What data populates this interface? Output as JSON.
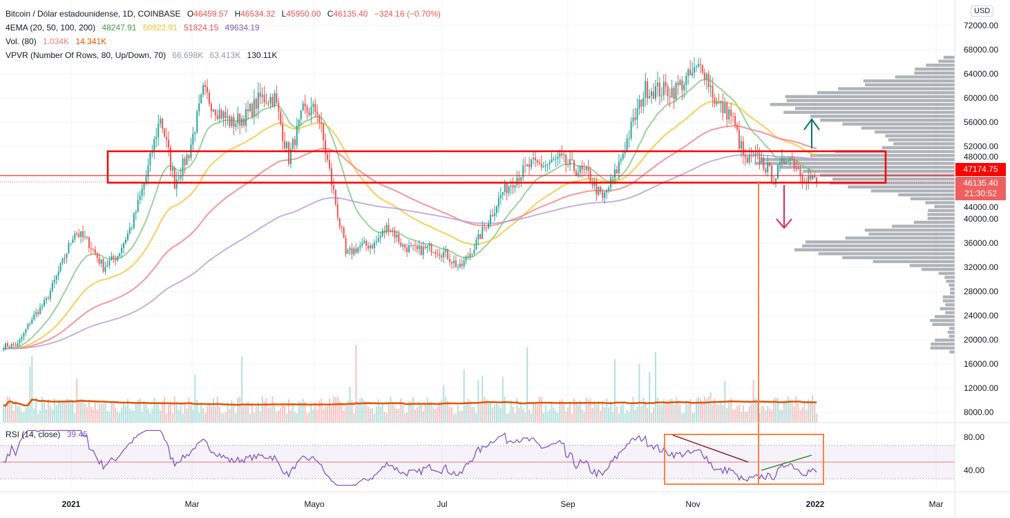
{
  "header": {
    "symbol": "Bitcoin / Dólar estadounidense, 1D, COINBASE",
    "open_label": "O",
    "open": "46459.57",
    "high_label": "H",
    "high": "46534.32",
    "low_label": "L",
    "low": "45950.00",
    "close_label": "C",
    "close": "46135.40",
    "change": "−324.16 (−0.70%)"
  },
  "ema": {
    "label": "4EMA (20, 50, 100, 200)",
    "v20": "48247.91",
    "v50": "50922.91",
    "v100": "51824.15",
    "v200": "49634.19"
  },
  "volume": {
    "label": "Vol. (80)",
    "v": "1.034K",
    "ma": "14.341K"
  },
  "vpvr": {
    "label": "VPVR (Number Of Rows, 80, Up/Down, 70)",
    "up": "66.698K",
    "down": "63.413K",
    "total": "130.11K"
  },
  "rsi": {
    "label": "RSI (14, close)",
    "value": "39.45"
  },
  "price_axis": {
    "currency": "USD",
    "ticks": [
      "72000.00",
      "68000.00",
      "64000.00",
      "60000.00",
      "56000.00",
      "52000.00",
      "48000.00",
      "44000.00",
      "40000.00",
      "36000.00",
      "32000.00",
      "28000.00",
      "24000.00",
      "20000.00",
      "16000.00",
      "12000.00",
      "8000.00"
    ],
    "tag_high": "47174.75",
    "tag_last": "46135.40",
    "countdown": "21:30:52"
  },
  "rsi_axis": {
    "ticks": [
      "80.00",
      "40.00"
    ]
  },
  "time_axis": {
    "labels": [
      "2021",
      "Mar",
      "Mayo",
      "Jul",
      "Sep",
      "Nov",
      "2022",
      "Mar"
    ]
  },
  "colors": {
    "up": "#26a69a",
    "down": "#ef5350",
    "ema20": "#81c784",
    "ema50": "#fbc02d",
    "ema100": "#f77c80",
    "ema200": "#b39ddb",
    "rsi": "#7e57c2",
    "box": "#ff0000",
    "annot": "#ff7f3f"
  },
  "chart_data": {
    "type": "candlestick",
    "start_date": "2020-11-29",
    "interval": "weekly anchors, daily candles interpolated",
    "weekly_closes": [
      19000,
      19200,
      23500,
      26500,
      32000,
      38000,
      36000,
      32000,
      34000,
      39000,
      47000,
      57000,
      46000,
      51000,
      61000,
      58000,
      55800,
      57000,
      60000,
      60000,
      50000,
      57800,
      58000,
      46000,
      34000,
      35500,
      35800,
      39000,
      35500,
      34700,
      35300,
      34200,
      31800,
      35400,
      39800,
      44500,
      47000,
      49000,
      48900,
      49900,
      48300,
      47300,
      43200,
      48100,
      55000,
      61500,
      61300,
      61300,
      63300,
      65500,
      59000,
      57300,
      49400,
      50100,
      46700,
      50800,
      47300,
      46135
    ],
    "ylim": [
      8000,
      72000
    ],
    "rsi_ylim": [
      20,
      90
    ],
    "annotations": {
      "zone_low": 46000,
      "zone_high": 51200,
      "target_up": 56500,
      "target_down": 39000
    }
  }
}
